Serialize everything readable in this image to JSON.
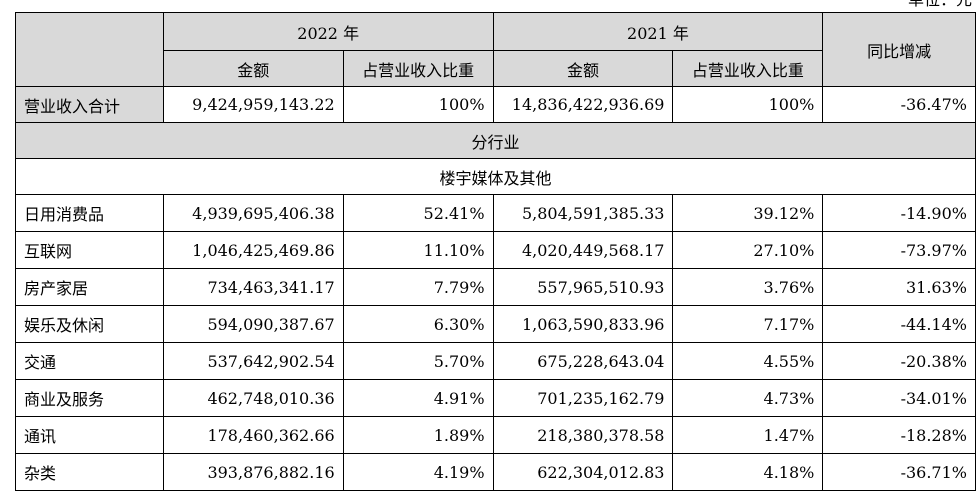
{
  "unit_label": "单位：元",
  "header": {
    "year_2022": "2022 年",
    "year_2021": "2021 年",
    "yoy": "同比增减",
    "amount": "金额",
    "share": "占营业收入比重"
  },
  "total": {
    "label": "营业收入合计",
    "amt2022": "9,424,959,143.22",
    "pct2022": "100%",
    "amt2021": "14,836,422,936.69",
    "pct2021": "100%",
    "yoy": "-36.47%"
  },
  "section_title": "分行业",
  "subsection_title": "楼宇媒体及其他",
  "rows": [
    {
      "label": "日用消费品",
      "amt2022": "4,939,695,406.38",
      "pct2022": "52.41%",
      "amt2021": "5,804,591,385.33",
      "pct2021": "39.12%",
      "yoy": "-14.90%"
    },
    {
      "label": "互联网",
      "amt2022": "1,046,425,469.86",
      "pct2022": "11.10%",
      "amt2021": "4,020,449,568.17",
      "pct2021": "27.10%",
      "yoy": "-73.97%"
    },
    {
      "label": "房产家居",
      "amt2022": "734,463,341.17",
      "pct2022": "7.79%",
      "amt2021": "557,965,510.93",
      "pct2021": "3.76%",
      "yoy": "31.63%"
    },
    {
      "label": "娱乐及休闲",
      "amt2022": "594,090,387.67",
      "pct2022": "6.30%",
      "amt2021": "1,063,590,833.96",
      "pct2021": "7.17%",
      "yoy": "-44.14%"
    },
    {
      "label": "交通",
      "amt2022": "537,642,902.54",
      "pct2022": "5.70%",
      "amt2021": "675,228,643.04",
      "pct2021": "4.55%",
      "yoy": "-20.38%"
    },
    {
      "label": "商业及服务",
      "amt2022": "462,748,010.36",
      "pct2022": "4.91%",
      "amt2021": "701,235,162.79",
      "pct2021": "4.73%",
      "yoy": "-34.01%"
    },
    {
      "label": "通讯",
      "amt2022": "178,460,362.66",
      "pct2022": "1.89%",
      "amt2021": "218,380,378.58",
      "pct2021": "1.47%",
      "yoy": "-18.28%"
    },
    {
      "label": "杂类",
      "amt2022": "393,876,882.16",
      "pct2022": "4.19%",
      "amt2021": "622,304,012.83",
      "pct2021": "4.18%",
      "yoy": "-36.71%"
    }
  ]
}
